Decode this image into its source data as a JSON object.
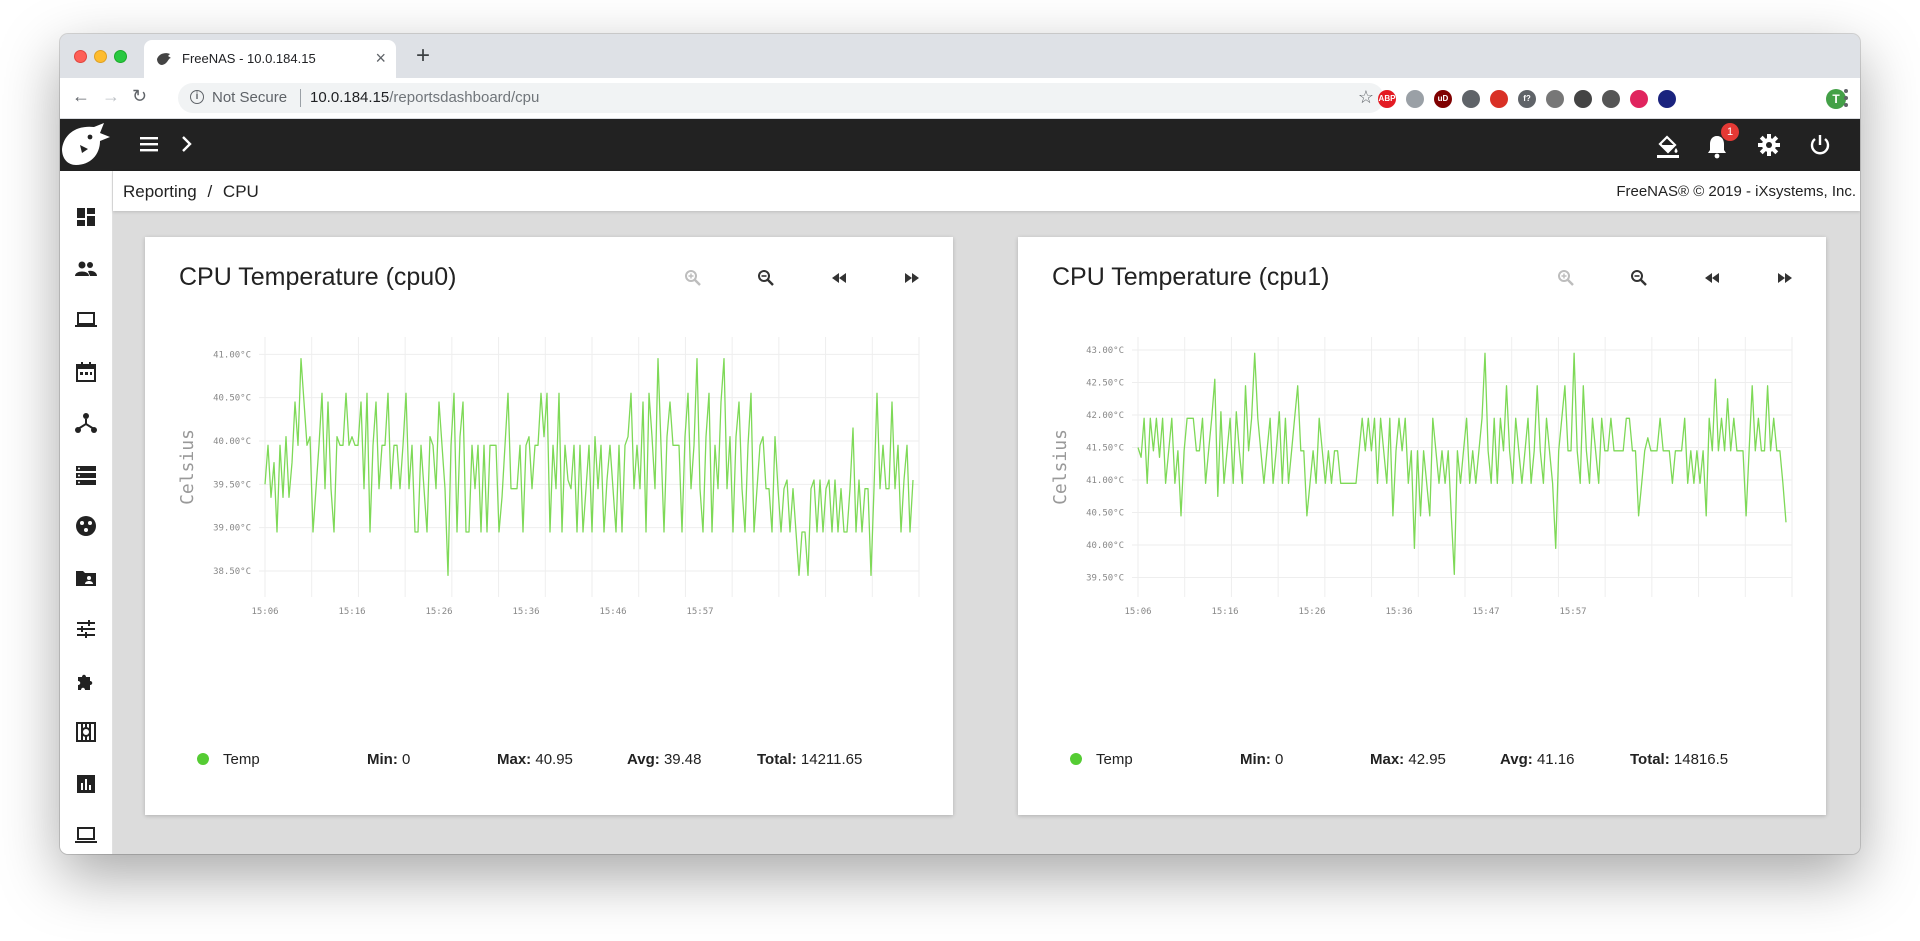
{
  "browser": {
    "tab_title": "FreeNAS - 10.0.184.15",
    "not_secure": "Not Secure",
    "url_host": "10.0.184.15",
    "url_path": "/reportsdashboard/cpu",
    "extensions": [
      {
        "name": "adblock-plus-icon",
        "label": "ABP",
        "color": "#e31b23"
      },
      {
        "name": "download-arrow-icon",
        "label": "",
        "color": "#9aa0a6"
      },
      {
        "name": "ublock-icon",
        "label": "uD",
        "color": "#800000"
      },
      {
        "name": "download-circle-icon",
        "label": "",
        "color": "#5f6368"
      },
      {
        "name": "stop-hand-icon",
        "label": "",
        "color": "#d93025"
      },
      {
        "name": "font-question-icon",
        "label": "f?",
        "color": "#5f6368"
      },
      {
        "name": "globe-icon",
        "label": "",
        "color": "#777777"
      },
      {
        "name": "wappalyzer-icon",
        "label": "",
        "color": "#444444"
      },
      {
        "name": "screenshot-icon",
        "label": "",
        "color": "#555555"
      },
      {
        "name": "link-icon",
        "label": "",
        "color": "#e0245e"
      },
      {
        "name": "eye-icon",
        "label": "",
        "color": "#1a237e"
      }
    ],
    "profile_initial": "T",
    "profile_color": "#43a047"
  },
  "header": {
    "notification_count": "1"
  },
  "sidebar": {
    "items": [
      {
        "name": "sidebar-item-dashboard",
        "icon": "dashboard-icon"
      },
      {
        "name": "sidebar-item-accounts",
        "icon": "people-icon"
      },
      {
        "name": "sidebar-item-system",
        "icon": "laptop-icon"
      },
      {
        "name": "sidebar-item-tasks",
        "icon": "calendar-icon"
      },
      {
        "name": "sidebar-item-network",
        "icon": "network-icon"
      },
      {
        "name": "sidebar-item-storage",
        "icon": "storage-icon"
      },
      {
        "name": "sidebar-item-directory-services",
        "icon": "directory-icon"
      },
      {
        "name": "sidebar-item-sharing",
        "icon": "shared-folder-icon"
      },
      {
        "name": "sidebar-item-services",
        "icon": "tune-icon"
      },
      {
        "name": "sidebar-item-plugins",
        "icon": "puzzle-icon"
      },
      {
        "name": "sidebar-item-jails",
        "icon": "jail-icon"
      },
      {
        "name": "sidebar-item-reporting",
        "icon": "bar-chart-icon"
      },
      {
        "name": "sidebar-item-vms",
        "icon": "computer-icon"
      }
    ]
  },
  "breadcrumb": {
    "parent": "Reporting",
    "separator": "/",
    "current": "CPU"
  },
  "copyright": "FreeNAS® © 2019 - iXsystems, Inc.",
  "colors": {
    "series": "#7ed957",
    "header_bg": "#222222",
    "legend_dot": "#55cc33"
  },
  "cards": [
    {
      "title": "CPU Temperature (cpu0)",
      "legend": {
        "name": "Temp",
        "min_label": "Min:",
        "min": "0",
        "max_label": "Max:",
        "max": "40.95",
        "avg_label": "Avg:",
        "avg": "39.48",
        "total_label": "Total:",
        "total": "14211.65"
      }
    },
    {
      "title": "CPU Temperature (cpu1)",
      "legend": {
        "name": "Temp",
        "min_label": "Min:",
        "min": "0",
        "max_label": "Max:",
        "max": "42.95",
        "avg_label": "Avg:",
        "avg": "41.16",
        "total_label": "Total:",
        "total": "14816.5"
      }
    }
  ],
  "chart_data": [
    {
      "type": "line",
      "title": "",
      "ylabel": "Celsius",
      "xlabel": "",
      "y_tick_labels": [
        "41.00°C",
        "40.50°C",
        "40.00°C",
        "39.50°C",
        "39.00°C",
        "38.50°C"
      ],
      "y_ticks": [
        41.0,
        40.5,
        40.0,
        39.5,
        39.0,
        38.5
      ],
      "ylim": [
        38.2,
        41.2
      ],
      "x_tick_labels": [
        "15:06",
        "15:16",
        "15:26",
        "15:36",
        "15:46",
        "15:57"
      ],
      "grid": true,
      "series": [
        {
          "name": "Temp",
          "values": [
            39.5,
            39.95,
            39.35,
            39.75,
            38.95,
            39.95,
            39.35,
            40.05,
            39.35,
            39.75,
            40.45,
            39.95,
            40.95,
            40.45,
            39.95,
            40.05,
            38.95,
            39.45,
            39.95,
            40.55,
            39.45,
            40.45,
            39.45,
            38.95,
            40.05,
            39.95,
            39.95,
            40.55,
            39.95,
            40.05,
            39.95,
            39.95,
            40.45,
            39.45,
            40.55,
            38.95,
            39.95,
            40.45,
            39.45,
            39.95,
            39.95,
            40.55,
            39.45,
            39.95,
            39.95,
            39.45,
            39.95,
            40.55,
            39.45,
            39.95,
            38.95,
            38.95,
            39.95,
            39.45,
            38.95,
            40.05,
            39.95,
            39.45,
            40.45,
            39.95,
            39.45,
            38.45,
            39.95,
            40.55,
            38.95,
            40.05,
            40.45,
            38.95,
            38.95,
            39.95,
            39.45,
            39.95,
            38.95,
            39.95,
            38.95,
            39.95,
            39.95,
            39.95,
            38.95,
            39.35,
            39.95,
            40.55,
            39.45,
            39.45,
            39.45,
            39.95,
            38.95,
            39.95,
            40.05,
            39.45,
            39.95,
            39.95,
            40.55,
            40.05,
            40.55,
            38.95,
            39.95,
            39.45,
            40.55,
            38.95,
            39.95,
            39.55,
            39.45,
            39.95,
            38.95,
            39.95,
            38.95,
            39.45,
            39.95,
            38.95,
            40.05,
            39.45,
            39.95,
            38.95,
            39.55,
            39.95,
            39.45,
            38.95,
            39.95,
            38.95,
            39.95,
            40.05,
            40.55,
            39.45,
            39.95,
            39.45,
            40.45,
            38.95,
            40.55,
            40.05,
            39.45,
            40.95,
            39.95,
            38.95,
            40.05,
            40.45,
            39.95,
            39.95,
            39.95,
            38.95,
            40.05,
            40.55,
            39.45,
            39.95,
            40.95,
            39.45,
            38.95,
            40.05,
            40.55,
            38.95,
            39.95,
            39.45,
            40.45,
            40.95,
            39.45,
            40.05,
            38.95,
            40.05,
            40.45,
            39.45,
            38.95,
            39.95,
            40.55,
            38.95,
            39.45,
            39.95,
            40.05,
            39.45,
            39.45,
            38.95,
            40.05,
            39.45,
            38.95,
            39.45,
            39.55,
            38.95,
            39.45,
            38.95,
            38.45,
            38.95,
            38.95,
            38.45,
            39.45,
            39.55,
            38.95,
            39.55,
            38.95,
            39.45,
            39.55,
            38.95,
            39.55,
            38.95,
            39.45,
            38.95,
            38.95,
            39.45,
            40.15,
            38.95,
            39.55,
            38.95,
            39.45,
            39.45,
            38.45,
            39.45,
            40.55,
            39.45,
            39.95,
            39.45,
            39.45,
            40.45,
            39.45,
            39.95,
            38.95,
            39.55,
            39.95,
            38.95,
            39.55
          ]
        }
      ]
    },
    {
      "type": "line",
      "title": "",
      "ylabel": "Celsius",
      "xlabel": "",
      "y_tick_labels": [
        "43.00°C",
        "42.50°C",
        "42.00°C",
        "41.50°C",
        "41.00°C",
        "40.50°C",
        "40.00°C",
        "39.50°C"
      ],
      "y_ticks": [
        43.0,
        42.5,
        42.0,
        41.5,
        41.0,
        40.5,
        40.0,
        39.5
      ],
      "ylim": [
        39.2,
        43.2
      ],
      "x_tick_labels": [
        "15:06",
        "15:16",
        "15:26",
        "15:36",
        "15:47",
        "15:57"
      ],
      "grid": true,
      "series": [
        {
          "name": "Temp",
          "values": [
            41.5,
            41.35,
            41.95,
            40.95,
            41.95,
            41.45,
            41.95,
            41.35,
            41.95,
            40.95,
            41.45,
            41.95,
            40.95,
            41.45,
            40.45,
            41.45,
            41.95,
            41.95,
            41.95,
            41.45,
            41.45,
            41.95,
            40.95,
            41.45,
            41.95,
            42.55,
            40.75,
            42.05,
            40.95,
            41.45,
            41.95,
            40.95,
            42.05,
            41.45,
            40.95,
            42.45,
            41.45,
            41.95,
            42.95,
            41.95,
            41.45,
            40.95,
            41.45,
            41.95,
            40.95,
            41.45,
            42.05,
            40.95,
            41.95,
            40.95,
            41.45,
            41.95,
            42.45,
            41.45,
            41.45,
            40.45,
            40.95,
            41.45,
            40.95,
            41.95,
            41.45,
            40.95,
            41.45,
            40.95,
            41.45,
            41.45,
            40.95,
            40.95,
            40.95,
            40.95,
            40.95,
            40.95,
            41.45,
            41.95,
            41.45,
            41.95,
            41.45,
            41.95,
            40.95,
            41.95,
            41.45,
            40.95,
            41.95,
            40.45,
            41.45,
            41.95,
            41.45,
            41.95,
            40.95,
            41.45,
            39.95,
            41.45,
            40.45,
            41.45,
            40.95,
            40.45,
            41.95,
            41.45,
            40.95,
            41.45,
            40.95,
            41.45,
            40.45,
            39.55,
            41.45,
            40.95,
            41.45,
            41.95,
            40.95,
            41.45,
            40.95,
            41.45,
            41.95,
            42.95,
            41.45,
            40.95,
            41.95,
            40.95,
            41.95,
            41.45,
            42.45,
            41.45,
            40.95,
            41.95,
            41.45,
            40.95,
            41.45,
            41.95,
            40.95,
            41.45,
            42.45,
            41.45,
            40.95,
            41.95,
            41.45,
            40.95,
            39.95,
            41.45,
            41.95,
            42.45,
            41.45,
            41.45,
            42.95,
            41.45,
            40.95,
            42.45,
            41.45,
            40.95,
            41.95,
            41.45,
            40.95,
            41.95,
            41.45,
            41.45,
            41.95,
            41.45,
            41.45,
            41.45,
            41.45,
            41.95,
            41.95,
            41.45,
            41.45,
            40.45,
            40.95,
            41.45,
            41.65,
            41.45,
            41.45,
            41.45,
            41.95,
            41.45,
            41.45,
            41.45,
            40.95,
            41.45,
            41.45,
            41.45,
            41.95,
            40.95,
            41.45,
            40.95,
            41.45,
            40.95,
            41.45,
            40.45,
            41.95,
            41.45,
            42.55,
            41.45,
            41.95,
            41.45,
            42.25,
            41.45,
            41.95,
            41.45,
            41.45,
            41.45,
            40.45,
            41.45,
            42.45,
            41.45,
            41.95,
            41.45,
            41.45,
            42.45,
            41.45,
            41.95,
            41.45,
            41.45,
            40.95,
            40.35
          ]
        }
      ]
    }
  ]
}
